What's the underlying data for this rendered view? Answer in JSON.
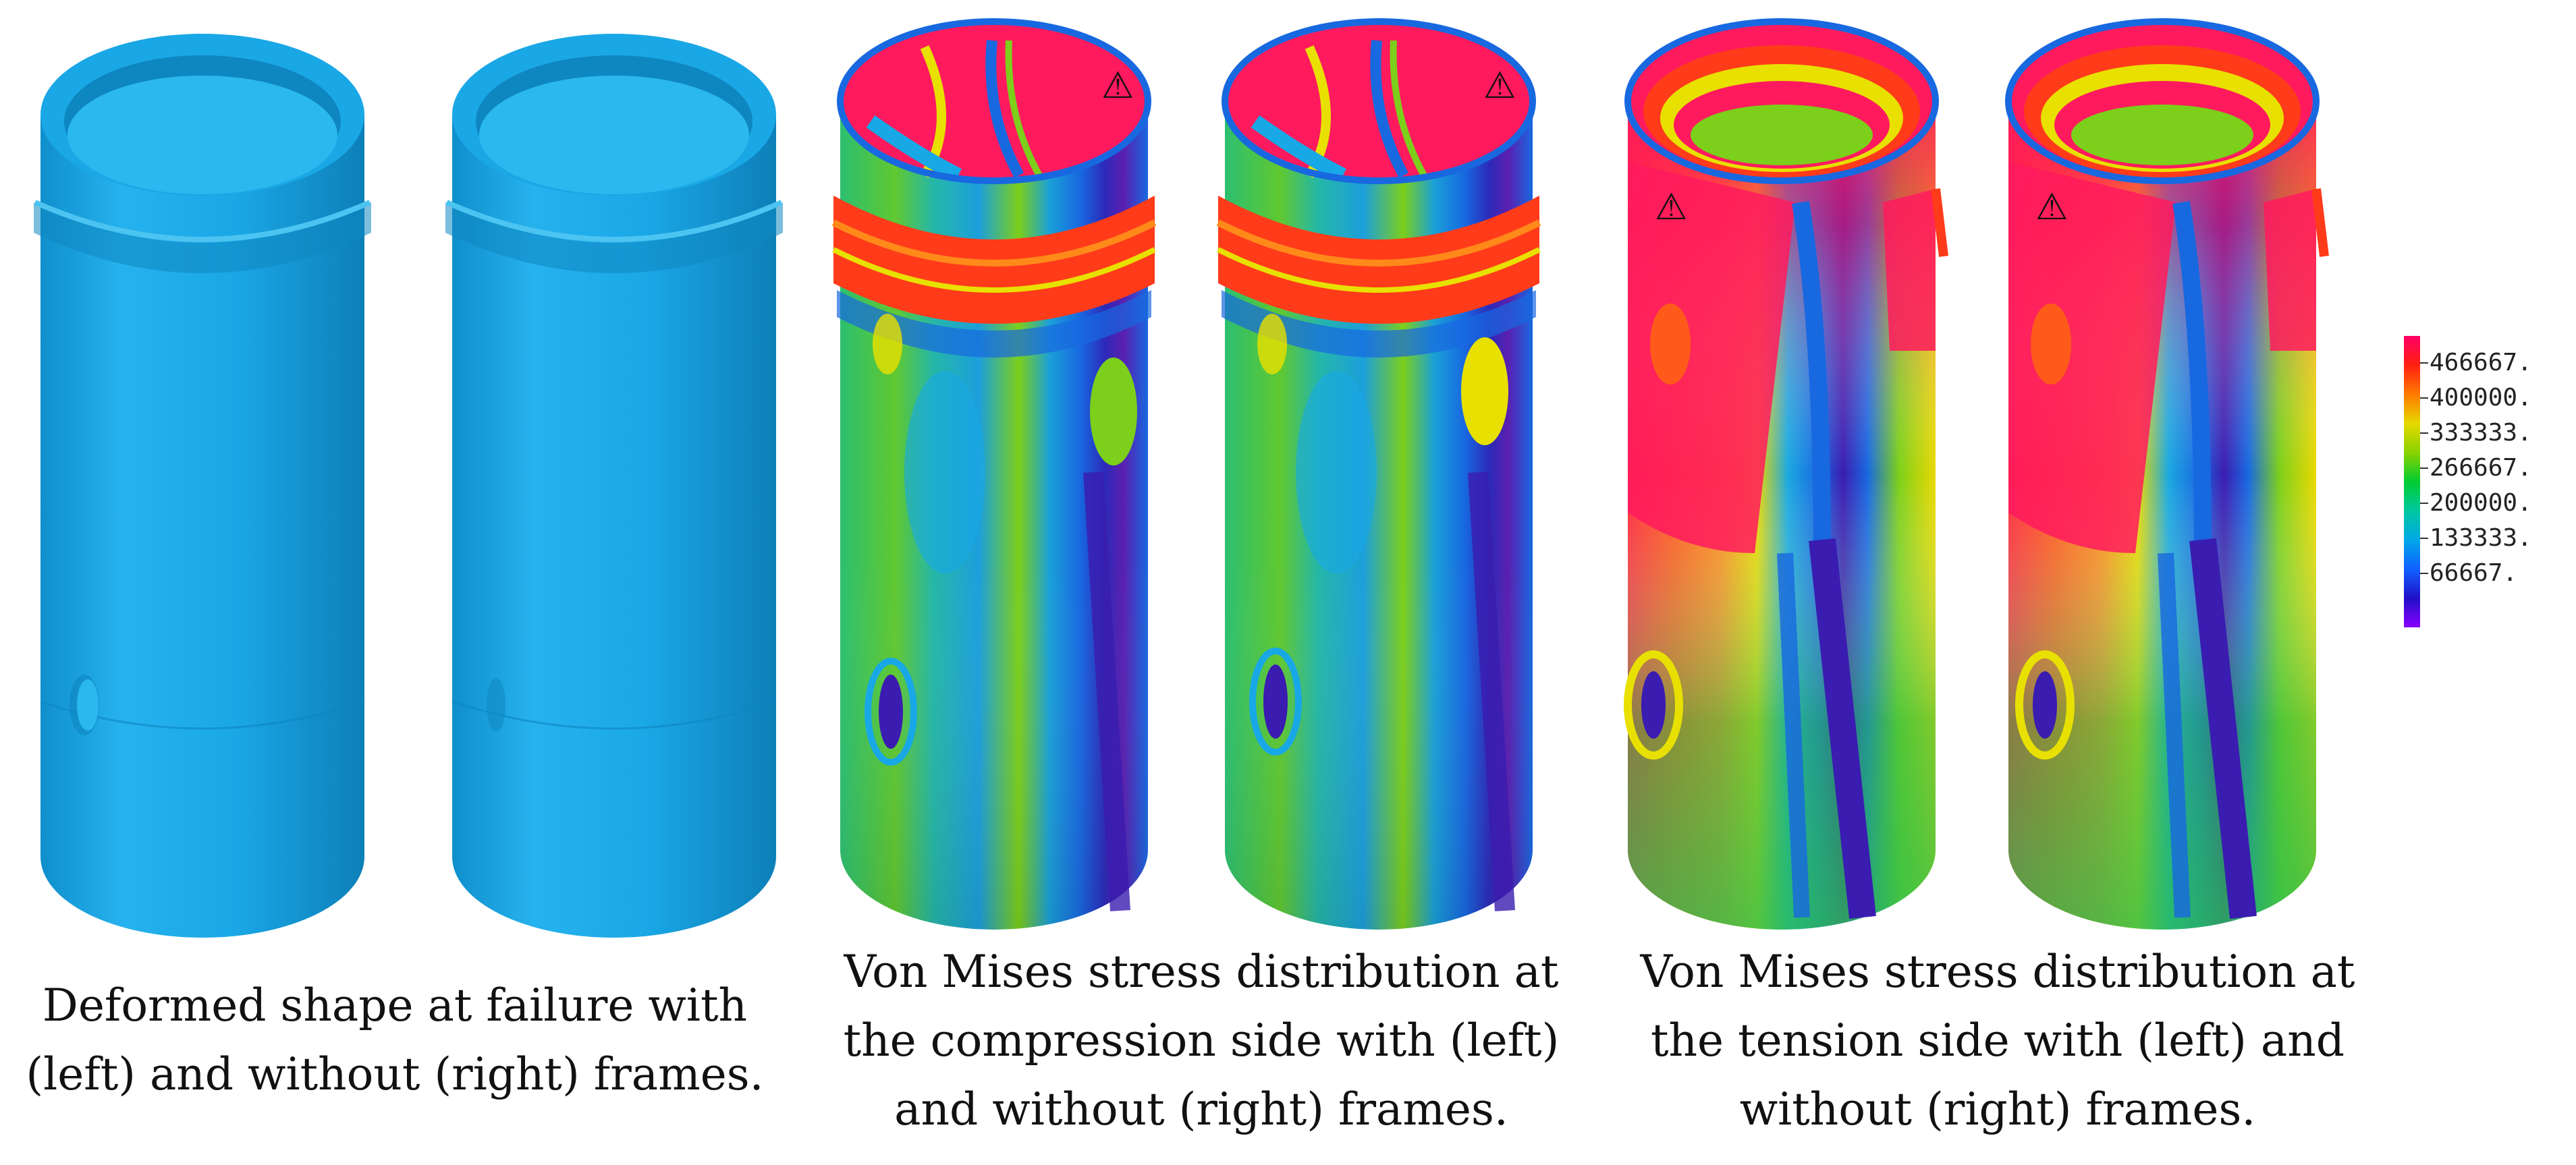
{
  "captions": {
    "deformed": [
      "Deformed shape at failure with",
      "(left) and without (right) frames."
    ],
    "compression": [
      "Von Mises stress distribution at",
      "the compression side with (left)",
      "and without (right) frames."
    ],
    "tension": [
      "Von Mises stress distribution at",
      "the tension side with (left) and",
      "without (right) frames."
    ]
  },
  "legend": {
    "labels": [
      "466667.",
      "400000.",
      "333333.",
      "266667.",
      "200000.",
      "133333.",
      "66667."
    ],
    "colors": [
      "#ff0066",
      "#ff2010",
      "#ff7a00",
      "#e6d800",
      "#8ad200",
      "#00cc30",
      "#00c8a0",
      "#00a8e8",
      "#1060ff",
      "#2010c8",
      "#8800ff"
    ]
  },
  "warning_symbol": "⚠",
  "colors": {
    "deformed_body": "#1aa7e6",
    "deformed_dark": "#0e86c0",
    "deformed_light": "#4cc4f2",
    "stress_high": "#ff1a5e",
    "stress_red": "#ff3b1a",
    "stress_orange": "#ff8a1a",
    "stress_yellow": "#e8e000",
    "stress_green": "#7ccf1a",
    "stress_teal": "#1fb8a8",
    "stress_cyan": "#18a8e6",
    "stress_blue": "#1868e0",
    "stress_violet": "#3a1cb0"
  }
}
